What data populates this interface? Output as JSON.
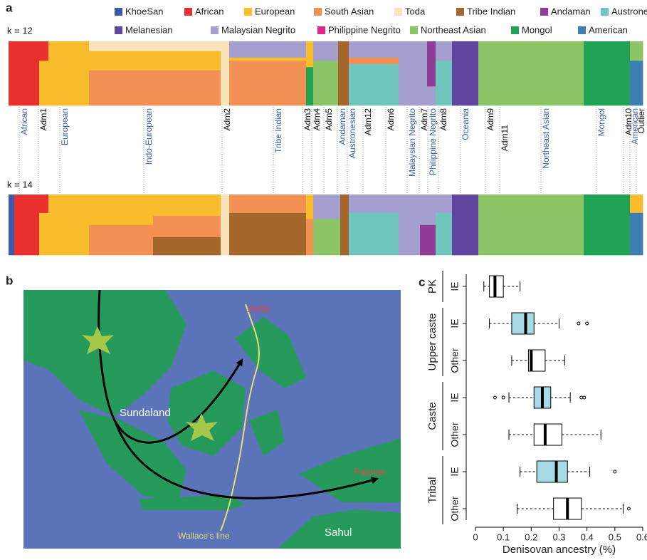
{
  "panel_a": {
    "label": "a",
    "legend": [
      {
        "name": "KhoeSan",
        "color": "#3b5ba9"
      },
      {
        "name": "African",
        "color": "#e8312f"
      },
      {
        "name": "European",
        "color": "#f9bc2c"
      },
      {
        "name": "South Asian",
        "color": "#f39155"
      },
      {
        "name": "Toda",
        "color": "#fbe2b8"
      },
      {
        "name": "Tribe Indian",
        "color": "#a5662c"
      },
      {
        "name": "Andaman",
        "color": "#8e3c96"
      },
      {
        "name": "Austronesian",
        "color": "#70c6bd"
      },
      {
        "name": "Melanesian",
        "color": "#6146a0"
      },
      {
        "name": "Malaysian Negrito",
        "color": "#a49fcf"
      },
      {
        "name": "Philippine Negrito",
        "color": "#e0268b"
      },
      {
        "name": "Northeast Asian",
        "color": "#8bc565"
      },
      {
        "name": "Mongol",
        "color": "#21a355"
      },
      {
        "name": "American",
        "color": "#3e7fb1"
      }
    ],
    "k_labels": [
      "k = 12",
      "k = 14"
    ],
    "groups": [
      {
        "label": "African",
        "kind": "population"
      },
      {
        "label": "Adm1",
        "kind": "admixed"
      },
      {
        "label": "European",
        "kind": "population"
      },
      {
        "label": "Indo-European",
        "kind": "population"
      },
      {
        "label": "Adm2",
        "kind": "admixed"
      },
      {
        "label": "Tribe Indian",
        "kind": "population"
      },
      {
        "label": "Adm3",
        "kind": "admixed"
      },
      {
        "label": "Adm4",
        "kind": "admixed"
      },
      {
        "label": "Adm5",
        "kind": "admixed"
      },
      {
        "label": "Andaman",
        "kind": "population"
      },
      {
        "label": "Austronesian",
        "kind": "population"
      },
      {
        "label": "Adm12",
        "kind": "admixed"
      },
      {
        "label": "Adm6",
        "kind": "admixed"
      },
      {
        "label": "Malaysian Negrito",
        "kind": "population"
      },
      {
        "label": "Adm7",
        "kind": "admixed"
      },
      {
        "label": "Philippine Negrito",
        "kind": "population"
      },
      {
        "label": "Adm8",
        "kind": "admixed"
      },
      {
        "label": "Oceania",
        "kind": "population"
      },
      {
        "label": "Adm9",
        "kind": "admixed"
      },
      {
        "label": "Adm11",
        "kind": "admixed"
      },
      {
        "label": "Northeast Asian",
        "kind": "population"
      },
      {
        "label": "Mongol",
        "kind": "population"
      },
      {
        "label": "Adm10",
        "kind": "admixed"
      },
      {
        "label": "American",
        "kind": "population"
      },
      {
        "label": "Outlier",
        "kind": "admixed"
      }
    ]
  },
  "panel_b": {
    "label": "b",
    "aeta": "Aeta",
    "sundaland": "Sundaland",
    "papuan": "Papuan",
    "sahul": "Sahul",
    "wallace": "Wallace's line"
  },
  "chart_data": {
    "type": "boxplot",
    "label": "c",
    "xlabel": "Denisovan ancestry (%)",
    "xlim": [
      0,
      0.6
    ],
    "xticks": [
      0,
      0.1,
      0.2,
      0.3,
      0.4,
      0.5,
      0.6
    ],
    "groups": [
      {
        "name": "PK",
        "boxes": [
          {
            "label": "IE",
            "color": "#ffffff",
            "min": 0.03,
            "q1": 0.05,
            "median": 0.07,
            "q3": 0.1,
            "max": 0.16
          }
        ]
      },
      {
        "name": "Upper caste",
        "boxes": [
          {
            "label": "IE",
            "color": "#a6dbe6",
            "min": 0.05,
            "q1": 0.13,
            "median": 0.18,
            "q3": 0.21,
            "max": 0.3,
            "outliers": [
              0.37,
              0.4
            ]
          },
          {
            "label": "Other",
            "color": "#ffffff",
            "min": 0.13,
            "q1": 0.19,
            "median": 0.2,
            "q3": 0.25,
            "max": 0.32
          }
        ]
      },
      {
        "name": "Caste",
        "boxes": [
          {
            "label": "IE",
            "color": "#a6dbe6",
            "min": 0.12,
            "q1": 0.21,
            "median": 0.24,
            "q3": 0.27,
            "max": 0.34,
            "outliers": [
              0.07,
              0.1,
              0.38,
              0.39
            ]
          },
          {
            "label": "Other",
            "color": "#ffffff",
            "min": 0.12,
            "q1": 0.21,
            "median": 0.25,
            "q3": 0.31,
            "max": 0.45
          }
        ]
      },
      {
        "name": "Tribal",
        "boxes": [
          {
            "label": "IE",
            "color": "#a6dbe6",
            "min": 0.16,
            "q1": 0.22,
            "median": 0.29,
            "q3": 0.33,
            "max": 0.41,
            "outliers": [
              0.5
            ]
          },
          {
            "label": "Other",
            "color": "#ffffff",
            "min": 0.15,
            "q1": 0.28,
            "median": 0.33,
            "q3": 0.38,
            "max": 0.53,
            "outliers": [
              0.55
            ]
          }
        ]
      }
    ]
  }
}
